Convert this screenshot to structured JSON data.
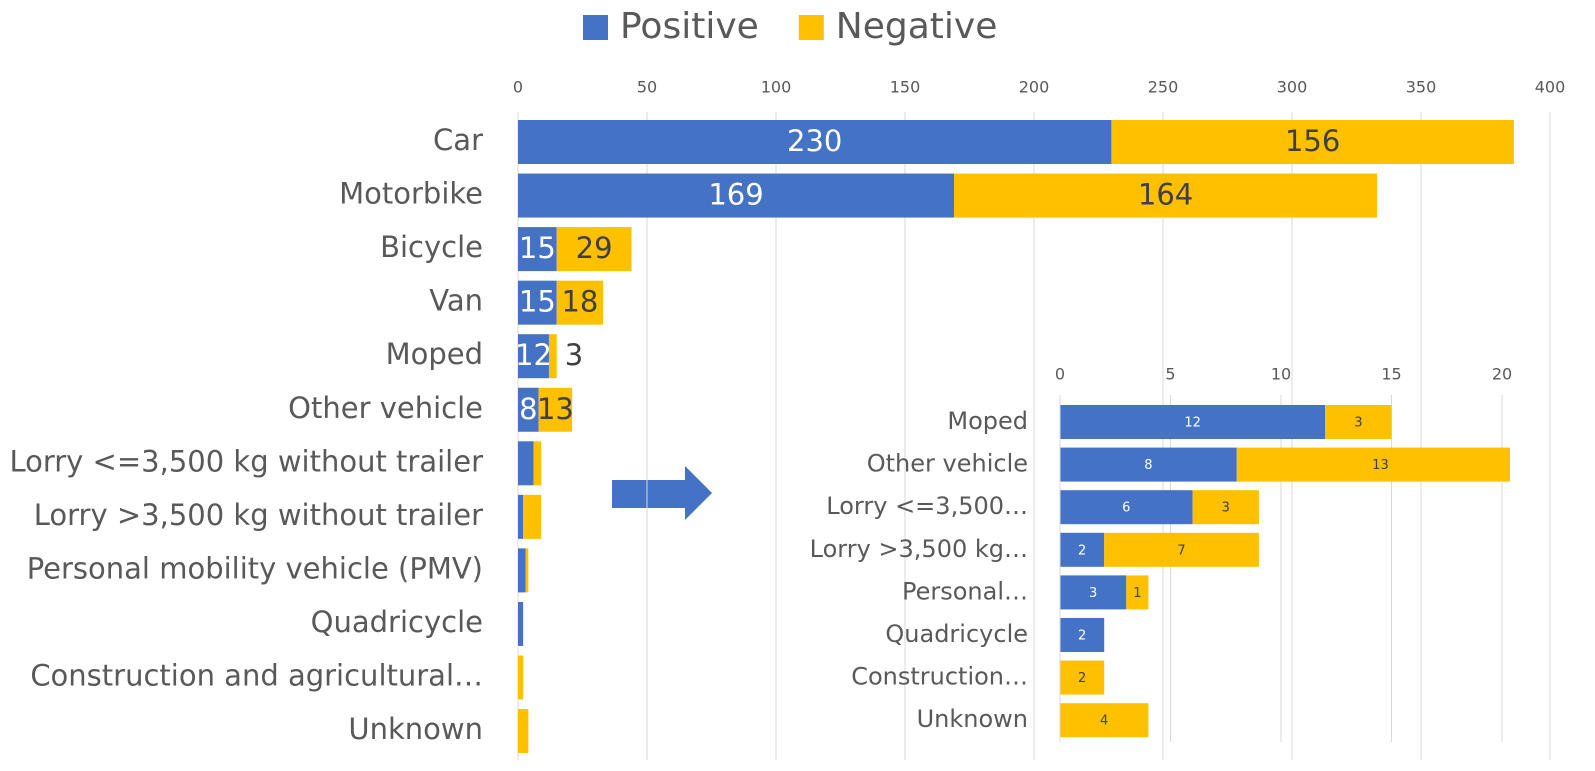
{
  "chart_data": [
    {
      "type": "stacked-bar-horizontal",
      "categories": [
        "Car",
        "Motorbike",
        "Bicycle",
        "Van",
        "Moped",
        "Other vehicle",
        "Lorry <=3,500 kg without trailer",
        "Lorry >3,500 kg without trailer",
        "Personal mobility vehicle (PMV)",
        "Quadricycle",
        "Construction and agricultural…",
        "Unknown"
      ],
      "series": [
        {
          "name": "Positive",
          "color": "#4472c4",
          "values": [
            230,
            169,
            15,
            15,
            12,
            8,
            6,
            2,
            3,
            2,
            0,
            0
          ],
          "value_labels": [
            "230",
            "169",
            "15",
            "15",
            "12",
            "8",
            null,
            null,
            null,
            null,
            null,
            null
          ]
        },
        {
          "name": "Negative",
          "color": "#ffc000",
          "values": [
            156,
            164,
            29,
            18,
            3,
            13,
            3,
            7,
            1,
            0,
            2,
            4
          ],
          "value_labels": [
            "156",
            "164",
            "29",
            "18",
            "3",
            "13",
            null,
            null,
            null,
            null,
            null,
            null
          ]
        }
      ],
      "xlim": [
        0,
        400
      ],
      "xticks": [
        0,
        50,
        100,
        150,
        200,
        250,
        300,
        350,
        400
      ],
      "grid": true,
      "legend": "top"
    },
    {
      "type": "stacked-bar-horizontal",
      "categories": [
        "Moped",
        "Other vehicle",
        "Lorry <=3,500…",
        "Lorry >3,500 kg…",
        "Personal…",
        "Quadricycle",
        "Construction…",
        "Unknown"
      ],
      "series": [
        {
          "color": "#4472c4",
          "values": [
            12,
            8,
            6,
            2,
            3,
            2,
            0,
            0
          ]
        },
        {
          "color": "#ffc000",
          "values": [
            3,
            13,
            3,
            7,
            1,
            0,
            2,
            4
          ]
        }
      ],
      "xlim": [
        0,
        20
      ],
      "xticks": [
        0,
        5,
        10,
        15,
        20
      ],
      "grid": true
    }
  ]
}
